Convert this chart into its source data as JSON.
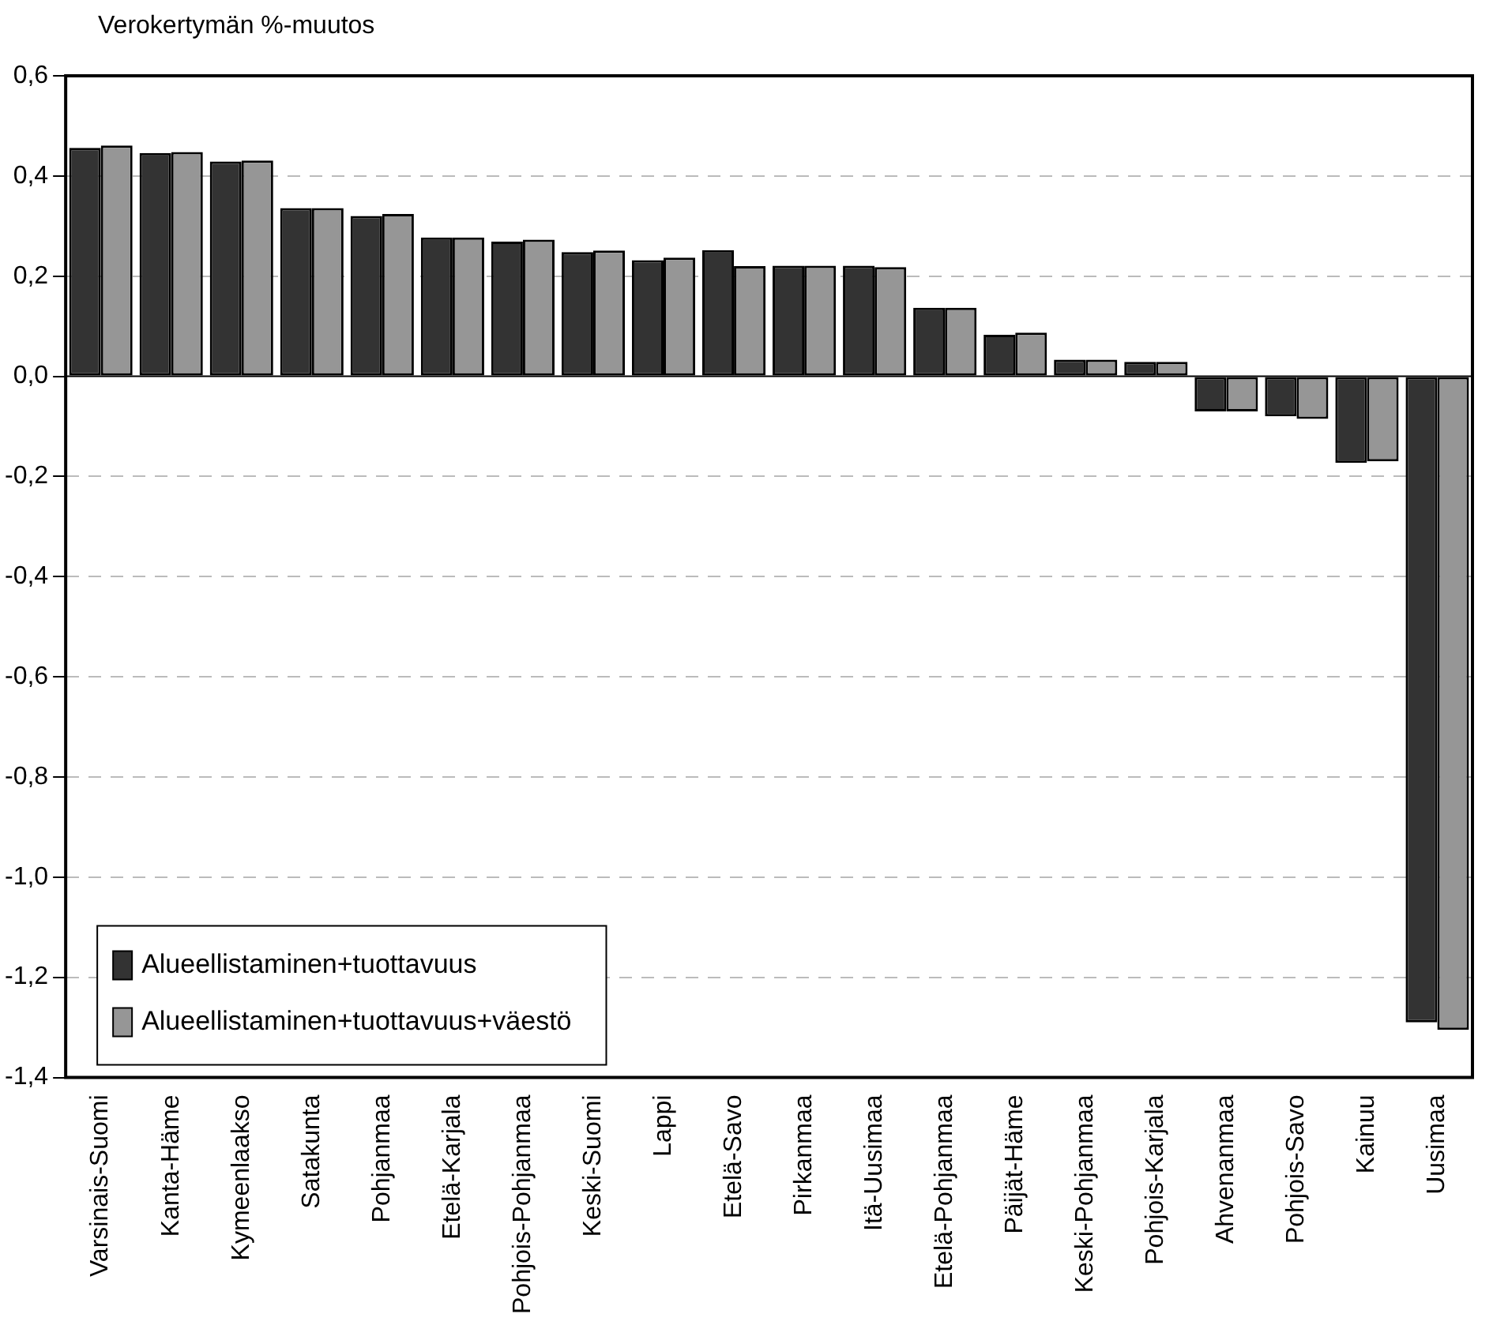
{
  "chart_data": {
    "type": "bar",
    "ylabel": "Verokertymän %-muutos",
    "categories": [
      "Varsinais-Suomi",
      "Kanta-Häme",
      "Kymeenlaakso",
      "Satakunta",
      "Pohjanmaa",
      "Etelä-Karjala",
      "Pohjois-Pohjanmaa",
      "Keski-Suomi",
      "Lappi",
      "Etelä-Savo",
      "Pirkanmaa",
      "Itä-Uusimaa",
      "Etelä-Pohjanmaa",
      "Päijät-Häme",
      "Keski-Pohjanmaa",
      "Pohjois-Karjala",
      "Ahvenanmaa",
      "Pohjois-Savo",
      "Kainuu",
      "Uusimaa"
    ],
    "series": [
      {
        "name": "Alueellistaminen+tuottavuus",
        "color": "#333333",
        "values": [
          0.456,
          0.446,
          0.429,
          0.336,
          0.32,
          0.277,
          0.269,
          0.248,
          0.232,
          0.252,
          0.221,
          0.221,
          0.137,
          0.083,
          0.033,
          0.029,
          -0.07,
          -0.08,
          -0.173,
          -1.29
        ]
      },
      {
        "name": "Alueellistaminen+tuottavuus+väestö",
        "color": "#969696",
        "values": [
          0.461,
          0.448,
          0.431,
          0.336,
          0.324,
          0.277,
          0.273,
          0.251,
          0.237,
          0.22,
          0.221,
          0.218,
          0.137,
          0.087,
          0.033,
          0.029,
          -0.07,
          -0.085,
          -0.17,
          -1.305
        ]
      }
    ],
    "ylim": [
      -1.4,
      0.6
    ],
    "yticks": [
      {
        "value": -1.4,
        "label": "-1,4"
      },
      {
        "value": -1.2,
        "label": "-1,2"
      },
      {
        "value": -1,
        "label": "-1,0"
      },
      {
        "value": -0.8,
        "label": "-0,8"
      },
      {
        "value": -0.6,
        "label": "-0,6"
      },
      {
        "value": -0.4,
        "label": "-0,4"
      },
      {
        "value": -0.2,
        "label": "-0,2"
      },
      {
        "value": 0,
        "label": "0,0"
      },
      {
        "value": 0.2,
        "label": "0,2"
      },
      {
        "value": 0.4,
        "label": "0,4"
      },
      {
        "value": 0.6,
        "label": "0,6"
      }
    ],
    "grid": "y",
    "legend": "bottom left"
  }
}
